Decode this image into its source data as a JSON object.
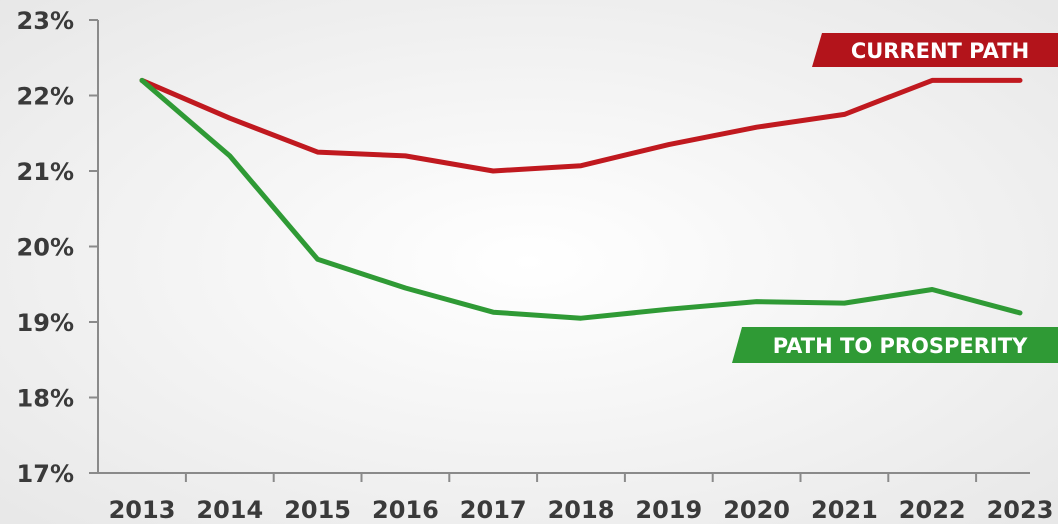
{
  "chart_data": {
    "type": "line",
    "title": "",
    "xlabel": "",
    "ylabel": "",
    "x": [
      "2013",
      "2014",
      "2015",
      "2016",
      "2017",
      "2018",
      "2019",
      "2020",
      "2021",
      "2022",
      "2023"
    ],
    "y_ticks": [
      "17%",
      "18%",
      "19%",
      "20%",
      "21%",
      "22%",
      "23%"
    ],
    "ylim": [
      17,
      23
    ],
    "grid": false,
    "series": [
      {
        "name": "CURRENT PATH",
        "color": "#c0191f",
        "label_color": "#b3141b",
        "values": [
          22.2,
          21.7,
          21.25,
          21.2,
          21.0,
          21.07,
          21.35,
          21.58,
          21.75,
          22.2,
          22.2
        ]
      },
      {
        "name": "PATH TO PROSPERITY",
        "color": "#2f9a35",
        "label_color": "#2f9a35",
        "values": [
          22.2,
          21.2,
          19.83,
          19.45,
          19.13,
          19.05,
          19.17,
          19.27,
          19.25,
          19.43,
          19.12
        ]
      }
    ]
  }
}
